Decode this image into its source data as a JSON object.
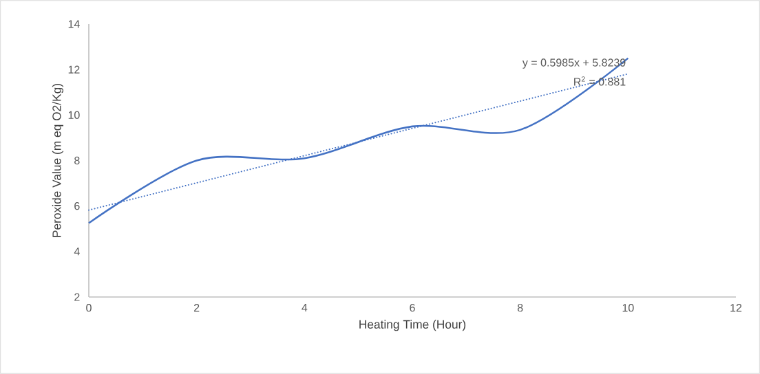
{
  "chart_data": {
    "type": "line",
    "xlabel": "Heating Time (Hour)",
    "ylabel": "Peroxide Value (m eq O2/Kg)",
    "x": [
      0,
      2,
      4,
      6,
      8,
      10
    ],
    "series": [
      {
        "color": "#4472c4",
        "line_style": "solid",
        "values": [
          5.25,
          8.0,
          8.1,
          9.5,
          9.35,
          12.5
        ]
      },
      {
        "color": "#4472c4",
        "line_style": "dotted",
        "x": [
          0,
          10
        ],
        "values": [
          5.82,
          11.81
        ]
      }
    ],
    "xlim": [
      0,
      12
    ],
    "xticks": [
      0,
      2,
      4,
      6,
      8,
      10,
      12
    ],
    "ylim": [
      2,
      14
    ],
    "yticks": [
      2,
      4,
      6,
      8,
      10,
      12,
      14
    ],
    "grid": false,
    "annotations": [
      "y = 0.5985x + 5.8239",
      "R$^{2}$ = 0.881"
    ]
  }
}
